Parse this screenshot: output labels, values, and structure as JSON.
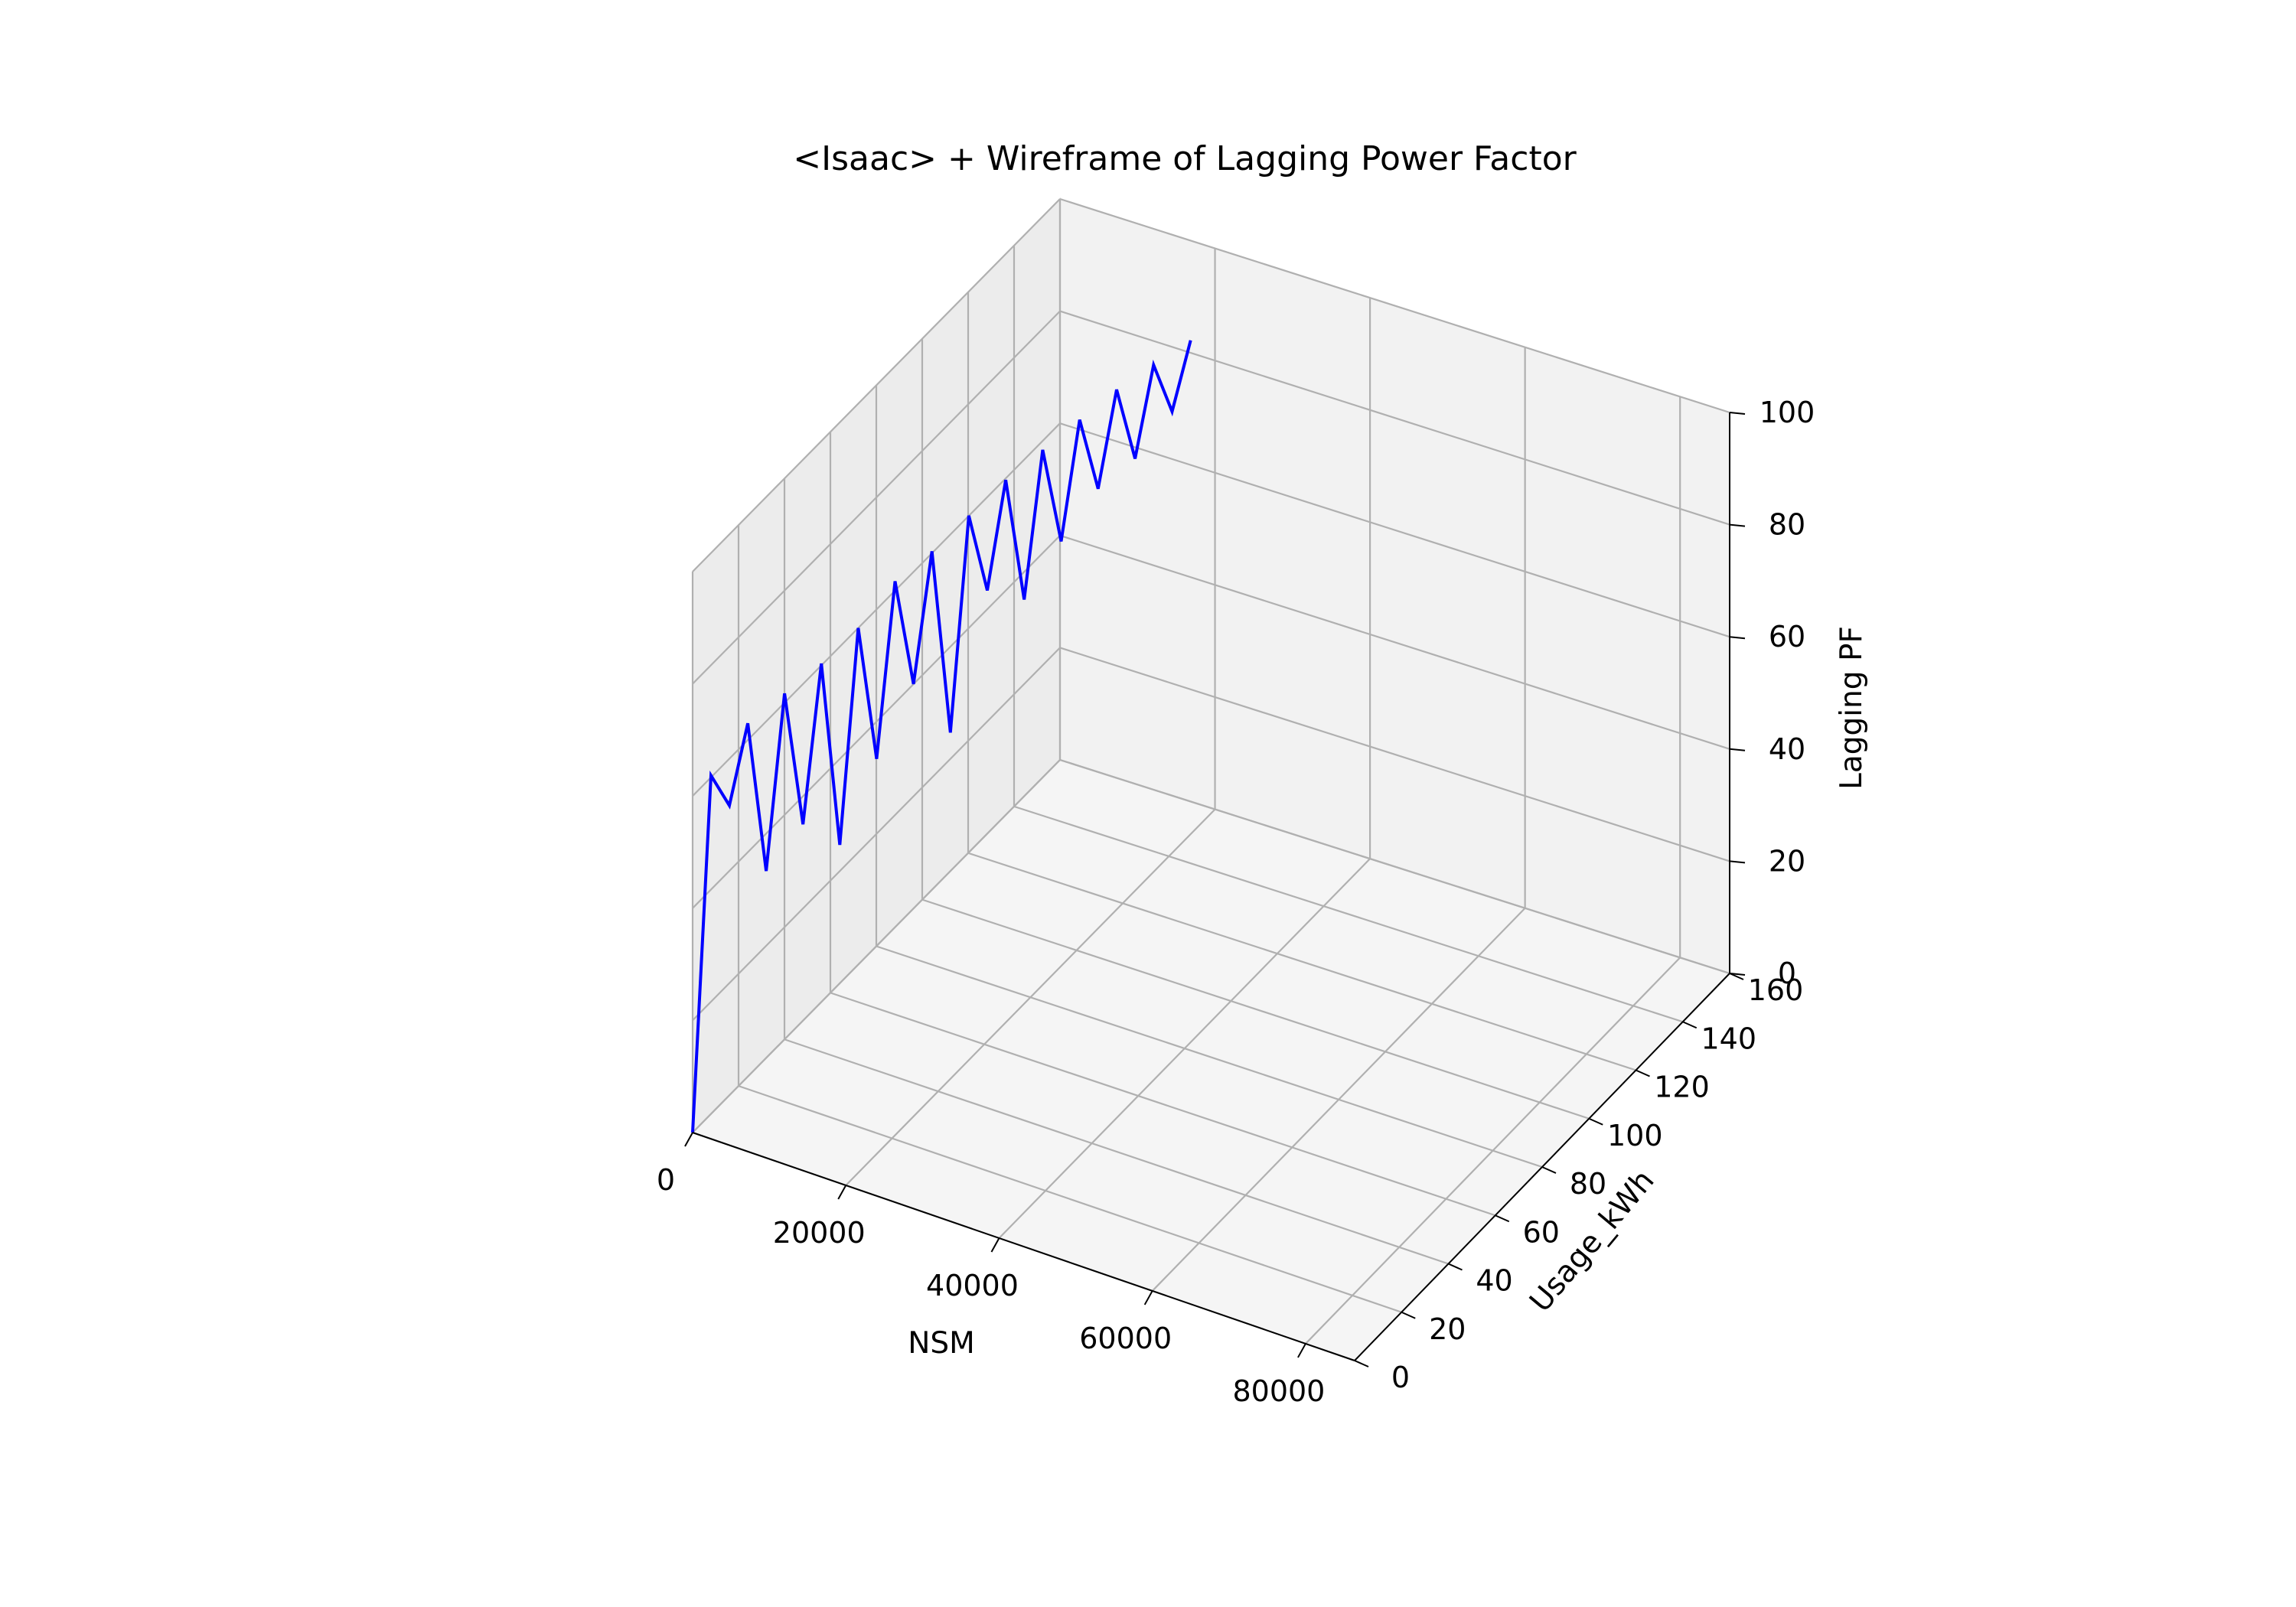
{
  "chart_data": {
    "type": "wireframe",
    "title": "<Isaac> + Wireframe of Lagging Power Factor",
    "xlabel": "NSM",
    "ylabel": "Usage_kWh",
    "zlabel": "Lagging PF",
    "x_ticks": [
      0,
      20000,
      40000,
      60000,
      80000
    ],
    "x_tick_labels": [
      "0",
      "20000",
      "40000",
      "60000",
      "80000"
    ],
    "y_ticks": [
      0,
      20,
      40,
      60,
      80,
      100,
      120,
      140,
      160
    ],
    "y_tick_labels": [
      "0",
      "20",
      "40",
      "60",
      "80",
      "100",
      "120",
      "140",
      "160"
    ],
    "z_ticks": [
      0,
      20,
      40,
      60,
      80,
      100
    ],
    "z_tick_labels": [
      "0",
      "20",
      "40",
      "60",
      "80",
      "100"
    ],
    "xlim": [
      0,
      86400
    ],
    "ylim": [
      0,
      160
    ],
    "zlim": [
      0,
      100
    ],
    "grid": true,
    "line_color": "#0000ff",
    "pane_color": "#f2f2f2",
    "grid_color": "#b0b0b0",
    "series": [
      {
        "x": [
          0,
          900,
          1800,
          2700,
          3600,
          4500,
          5400,
          6300,
          7200,
          8100,
          9000,
          9900,
          10800,
          11700,
          12600,
          13500,
          14400,
          15300,
          16200,
          17100,
          18000,
          18900,
          19800,
          20700,
          21600,
          22500,
          23400,
          24300
        ],
        "y": [
          0,
          5,
          10,
          15,
          20,
          25,
          30,
          35,
          40,
          45,
          50,
          55,
          60,
          65,
          70,
          75,
          80,
          85,
          90,
          95,
          100,
          105,
          110,
          115,
          120,
          125,
          130,
          135
        ],
        "z": [
          0,
          62,
          55,
          68,
          40,
          70,
          45,
          72,
          38,
          75,
          50,
          80,
          60,
          82,
          48,
          85,
          70,
          88,
          65,
          90,
          72,
          92,
          78,
          94,
          80,
          95,
          85,
          96
        ]
      }
    ]
  }
}
